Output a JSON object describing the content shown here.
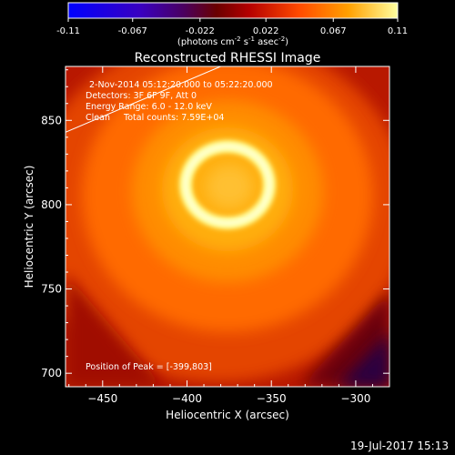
{
  "colorbar": {
    "ticks": [
      "-0.11",
      "-0.067",
      "-0.022",
      "0.022",
      "0.067",
      "0.11"
    ],
    "unit_label_parts": [
      "(photons cm",
      "-2",
      " s",
      "-1",
      " asec",
      "-2",
      ")"
    ],
    "range": [
      -0.11,
      0.11
    ]
  },
  "chart_data": {
    "type": "heatmap",
    "title": "Reconstructed RHESSI Image",
    "xlabel": "Heliocentric X (arcsec)",
    "ylabel": "Heliocentric Y (arcsec)",
    "xlim": [
      -472,
      -280
    ],
    "ylim": [
      692,
      882
    ],
    "x_ticks": [
      -450,
      -400,
      -350,
      -300
    ],
    "x_tick_labels": [
      "−450",
      "−400",
      "−350",
      "−300"
    ],
    "y_ticks": [
      700,
      750,
      800,
      850
    ],
    "y_tick_labels": [
      "700",
      "750",
      "800",
      "850"
    ],
    "annotations": {
      "time_range": "2-Nov-2014 05:12:20.000 to 05:22:20.000",
      "detectors": "Detectors: 3F 6F 9F, Att 0",
      "energy": "Energy Range: 6.0 - 12.0 keV",
      "clean": "Clean     Total counts: 7.59E+04",
      "peak": "Position of Peak = [-399,803]"
    },
    "source": {
      "center": [
        -380,
        805
      ],
      "ring_radius": 18,
      "peak_value": 0.11
    },
    "limb_line": [
      [
        -472,
        843
      ],
      [
        -380,
        882
      ]
    ]
  },
  "footer": {
    "timestamp": "19-Jul-2017 15:13"
  }
}
